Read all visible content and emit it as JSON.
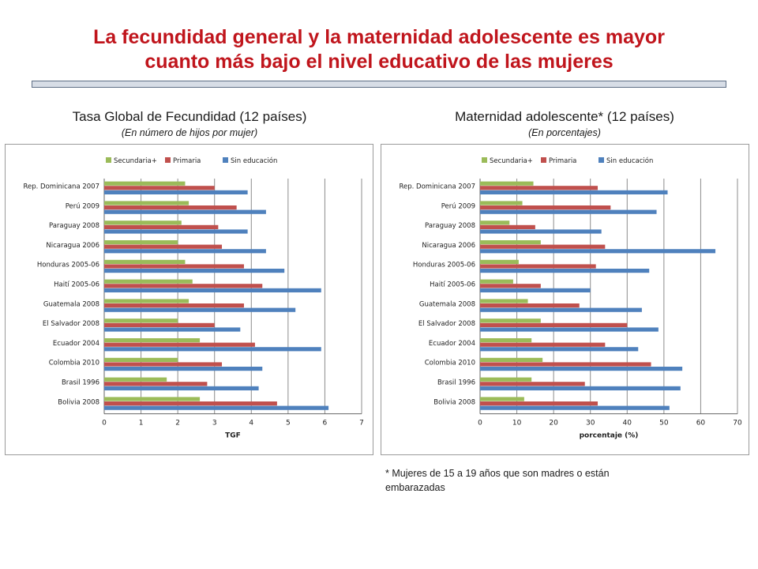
{
  "page": {
    "title_line1": "La fecundidad general y la maternidad adolescente es mayor",
    "title_line2": "cuanto más bajo el nivel educativo de las mujeres",
    "footnote_line1": "* Mujeres de 15 a 19 años que son madres o están",
    "footnote_line2": "embarazadas"
  },
  "colors": {
    "series": [
      "#9bbb59",
      "#c0504d",
      "#4f81bd"
    ],
    "title": "#c0151c"
  },
  "chart_data": [
    {
      "type": "bar",
      "orientation": "horizontal",
      "title": "Tasa Global de Fecundidad (12 países)",
      "subtitle": "(En número de hijos por mujer)",
      "xlabel": "TGF",
      "xlim": [
        0,
        7
      ],
      "xticks": [
        "0",
        "1",
        "2",
        "3",
        "4",
        "5",
        "6",
        "7"
      ],
      "categories": [
        "Rep. Dominicana 2007",
        "Perú 2009",
        "Paraguay 2008",
        "Nicaragua 2006",
        "Honduras 2005-06",
        "Haití 2005-06",
        "Guatemala 2008",
        "El Salvador 2008",
        "Ecuador 2004",
        "Colombia 2010",
        "Brasil 1996",
        "Bolivia 2008"
      ],
      "series": [
        {
          "name": "Secundaria+",
          "values": [
            2.2,
            2.3,
            2.1,
            2.0,
            2.2,
            2.4,
            2.3,
            2.0,
            2.6,
            2.0,
            1.7,
            2.6
          ]
        },
        {
          "name": "Primaria",
          "values": [
            3.0,
            3.6,
            3.1,
            3.2,
            3.8,
            4.3,
            3.8,
            3.0,
            4.1,
            3.2,
            2.8,
            4.7
          ]
        },
        {
          "name": "Sin educación",
          "values": [
            3.9,
            4.4,
            3.9,
            4.4,
            4.9,
            5.9,
            5.2,
            3.7,
            5.9,
            4.3,
            4.2,
            6.1
          ]
        }
      ]
    },
    {
      "type": "bar",
      "orientation": "horizontal",
      "title": "Maternidad adolescente* (12 países)",
      "subtitle": "(En porcentajes)",
      "xlabel": "porcentaje (%)",
      "xlim": [
        0,
        70
      ],
      "xticks": [
        "0",
        "10",
        "20",
        "30",
        "40",
        "50",
        "60",
        "70"
      ],
      "categories": [
        "Rep. Dominicana 2007",
        "Perú 2009",
        "Paraguay 2008",
        "Nicaragua 2006",
        "Honduras 2005-06",
        "Haití 2005-06",
        "Guatemala 2008",
        "El Salvador 2008",
        "Ecuador 2004",
        "Colombia 2010",
        "Brasil 1996",
        "Bolivia 2008"
      ],
      "series": [
        {
          "name": "Secundaria+",
          "values": [
            14.5,
            11.5,
            8.0,
            16.5,
            10.5,
            9.0,
            13.0,
            16.5,
            14.0,
            17.0,
            14.0,
            12.0
          ]
        },
        {
          "name": "Primaria",
          "values": [
            32.0,
            35.5,
            15.0,
            34.0,
            31.5,
            16.5,
            27.0,
            40.0,
            34.0,
            46.5,
            28.5,
            32.0
          ]
        },
        {
          "name": "Sin educación",
          "values": [
            51.0,
            48.0,
            33.0,
            64.0,
            46.0,
            30.0,
            44.0,
            48.5,
            43.0,
            55.0,
            54.5,
            51.5
          ]
        }
      ]
    }
  ]
}
